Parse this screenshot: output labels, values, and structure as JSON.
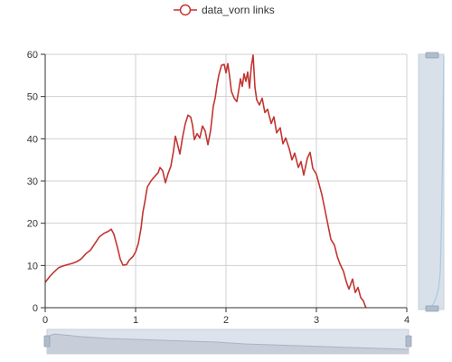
{
  "chart_data": {
    "type": "line",
    "legend": {
      "position": "top-center",
      "entries": [
        "data_vorn links"
      ]
    },
    "series": [
      {
        "name": "data_vorn links",
        "color": "#c23531",
        "points": [
          [
            0.0,
            6.0
          ],
          [
            0.05,
            7.4
          ],
          [
            0.1,
            8.5
          ],
          [
            0.15,
            9.5
          ],
          [
            0.2,
            9.9
          ],
          [
            0.25,
            10.2
          ],
          [
            0.3,
            10.5
          ],
          [
            0.35,
            10.9
          ],
          [
            0.4,
            11.6
          ],
          [
            0.45,
            12.8
          ],
          [
            0.5,
            13.6
          ],
          [
            0.55,
            15.2
          ],
          [
            0.6,
            16.8
          ],
          [
            0.65,
            17.6
          ],
          [
            0.7,
            18.1
          ],
          [
            0.73,
            18.6
          ],
          [
            0.76,
            17.4
          ],
          [
            0.8,
            14.2
          ],
          [
            0.83,
            11.5
          ],
          [
            0.86,
            10.1
          ],
          [
            0.9,
            10.2
          ],
          [
            0.93,
            11.3
          ],
          [
            0.97,
            12.1
          ],
          [
            1.0,
            13.2
          ],
          [
            1.03,
            15.2
          ],
          [
            1.06,
            18.8
          ],
          [
            1.08,
            22.5
          ],
          [
            1.1,
            24.8
          ],
          [
            1.13,
            28.6
          ],
          [
            1.17,
            30.0
          ],
          [
            1.2,
            30.8
          ],
          [
            1.25,
            32.0
          ],
          [
            1.27,
            33.2
          ],
          [
            1.3,
            32.4
          ],
          [
            1.33,
            29.6
          ],
          [
            1.36,
            31.8
          ],
          [
            1.39,
            33.5
          ],
          [
            1.42,
            37.2
          ],
          [
            1.44,
            40.6
          ],
          [
            1.46,
            39.0
          ],
          [
            1.49,
            36.4
          ],
          [
            1.52,
            40.4
          ],
          [
            1.55,
            43.6
          ],
          [
            1.58,
            45.6
          ],
          [
            1.61,
            45.1
          ],
          [
            1.63,
            43.2
          ],
          [
            1.65,
            39.8
          ],
          [
            1.68,
            41.2
          ],
          [
            1.71,
            40.2
          ],
          [
            1.74,
            43.0
          ],
          [
            1.77,
            41.8
          ],
          [
            1.8,
            38.6
          ],
          [
            1.83,
            42.0
          ],
          [
            1.86,
            47.8
          ],
          [
            1.88,
            49.6
          ],
          [
            1.9,
            52.6
          ],
          [
            1.92,
            55.0
          ],
          [
            1.95,
            57.4
          ],
          [
            1.98,
            57.6
          ],
          [
            2.0,
            55.6
          ],
          [
            2.02,
            57.8
          ],
          [
            2.04,
            54.8
          ],
          [
            2.06,
            51.2
          ],
          [
            2.09,
            49.6
          ],
          [
            2.12,
            48.8
          ],
          [
            2.14,
            51.4
          ],
          [
            2.16,
            54.2
          ],
          [
            2.18,
            52.4
          ],
          [
            2.2,
            55.4
          ],
          [
            2.22,
            53.6
          ],
          [
            2.24,
            55.8
          ],
          [
            2.26,
            52.0
          ],
          [
            2.28,
            57.2
          ],
          [
            2.3,
            59.8
          ],
          [
            2.32,
            52.2
          ],
          [
            2.34,
            49.2
          ],
          [
            2.37,
            48.0
          ],
          [
            2.4,
            49.6
          ],
          [
            2.43,
            46.2
          ],
          [
            2.46,
            47.0
          ],
          [
            2.5,
            43.6
          ],
          [
            2.53,
            45.2
          ],
          [
            2.56,
            41.4
          ],
          [
            2.6,
            42.6
          ],
          [
            2.63,
            38.8
          ],
          [
            2.66,
            40.2
          ],
          [
            2.7,
            37.6
          ],
          [
            2.73,
            35.0
          ],
          [
            2.76,
            36.6
          ],
          [
            2.8,
            33.2
          ],
          [
            2.83,
            34.6
          ],
          [
            2.86,
            31.4
          ],
          [
            2.9,
            35.4
          ],
          [
            2.93,
            36.8
          ],
          [
            2.96,
            33.0
          ],
          [
            3.0,
            31.6
          ],
          [
            3.03,
            29.2
          ],
          [
            3.06,
            26.8
          ],
          [
            3.1,
            22.6
          ],
          [
            3.13,
            19.4
          ],
          [
            3.16,
            16.2
          ],
          [
            3.2,
            14.8
          ],
          [
            3.23,
            12.2
          ],
          [
            3.26,
            10.4
          ],
          [
            3.3,
            8.6
          ],
          [
            3.33,
            6.2
          ],
          [
            3.36,
            4.4
          ],
          [
            3.4,
            6.8
          ],
          [
            3.43,
            3.6
          ],
          [
            3.46,
            4.8
          ],
          [
            3.49,
            2.4
          ],
          [
            3.52,
            1.6
          ],
          [
            3.54,
            0.4
          ],
          [
            3.55,
            0.0
          ]
        ]
      }
    ],
    "x_axis": {
      "min": 0,
      "max": 4,
      "ticks": [
        "0",
        "1",
        "2",
        "3",
        "4"
      ]
    },
    "y_axis": {
      "min": 0,
      "max": 60,
      "ticks": [
        "0",
        "10",
        "20",
        "30",
        "40",
        "50",
        "60"
      ]
    },
    "grid": true,
    "x_data_zoom": {
      "type": "slider",
      "position": "bottom",
      "start": 0,
      "end": 100
    },
    "y_data_zoom": {
      "type": "slider",
      "position": "right",
      "start": 0,
      "end": 100
    }
  }
}
